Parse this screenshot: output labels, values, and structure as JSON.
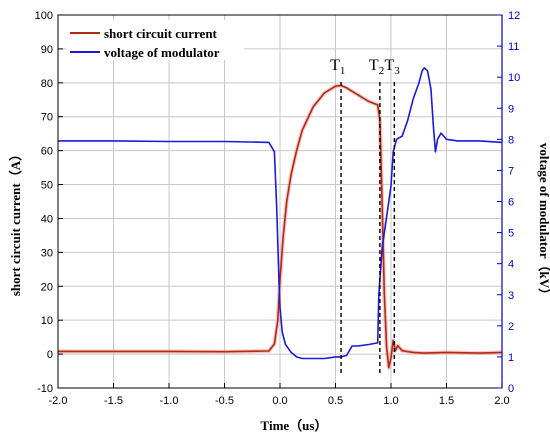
{
  "chart_data": {
    "type": "line",
    "xlabel": "Time（us）",
    "ylabel_left": "short circuit current（A）",
    "ylabel_right": "voltage of modulator（kV）",
    "xlim": [
      -2.0,
      2.0
    ],
    "ylim_left": [
      -10,
      100
    ],
    "ylim_right": [
      0,
      12
    ],
    "x_ticks": [
      "-2.0",
      "-1.5",
      "-1.0",
      "-0.5",
      "0.0",
      "0.5",
      "1.0",
      "1.5",
      "2.0"
    ],
    "y_left_ticks": [
      "-10",
      "0",
      "10",
      "20",
      "30",
      "40",
      "50",
      "60",
      "70",
      "80",
      "90",
      "100"
    ],
    "y_right_ticks": [
      "0",
      "1",
      "2",
      "3",
      "4",
      "5",
      "6",
      "7",
      "8",
      "9",
      "10",
      "11",
      "12"
    ],
    "grid": true,
    "legend_position": "top-left",
    "colors": {
      "current": "#b22a12",
      "voltage": "#1a1adb",
      "right_axis": "#0000cc"
    },
    "series": [
      {
        "name": "short circuit current",
        "axis": "left",
        "x": [
          -2.0,
          -1.5,
          -1.0,
          -0.5,
          -0.1,
          -0.05,
          -0.02,
          0.0,
          0.03,
          0.06,
          0.1,
          0.15,
          0.2,
          0.3,
          0.4,
          0.5,
          0.55,
          0.6,
          0.7,
          0.8,
          0.88,
          0.9,
          0.92,
          0.94,
          0.96,
          0.98,
          1.0,
          1.02,
          1.04,
          1.06,
          1.1,
          1.2,
          1.3,
          1.5,
          1.8,
          2.0
        ],
        "values": [
          0.8,
          0.8,
          0.8,
          0.7,
          0.9,
          3,
          10,
          22,
          35,
          45,
          53,
          60,
          66,
          73,
          77,
          79,
          79.2,
          78.5,
          76.5,
          74.5,
          73.5,
          69,
          45,
          18,
          2,
          -4,
          -1,
          4,
          1,
          2.5,
          1,
          0.5,
          0.3,
          0.5,
          0.3,
          0.5
        ]
      },
      {
        "name": "voltage of modulator",
        "axis": "right",
        "x": [
          -2.0,
          -1.5,
          -1.0,
          -0.5,
          -0.1,
          -0.05,
          -0.03,
          -0.01,
          0.0,
          0.02,
          0.05,
          0.1,
          0.15,
          0.2,
          0.3,
          0.4,
          0.5,
          0.55,
          0.6,
          0.65,
          0.7,
          0.8,
          0.88,
          0.89,
          0.92,
          0.96,
          1.0,
          1.02,
          1.05,
          1.1,
          1.15,
          1.2,
          1.25,
          1.28,
          1.3,
          1.33,
          1.36,
          1.38,
          1.4,
          1.42,
          1.45,
          1.5,
          1.6,
          1.8,
          2.0
        ],
        "values": [
          7.95,
          7.95,
          7.93,
          7.93,
          7.9,
          7.6,
          5.8,
          3.5,
          2.6,
          1.8,
          1.4,
          1.15,
          1.0,
          0.95,
          0.95,
          0.95,
          1.0,
          1.0,
          1.05,
          1.35,
          1.35,
          1.4,
          1.45,
          3.0,
          4.5,
          5.5,
          6.5,
          7.6,
          8.0,
          8.1,
          8.6,
          9.3,
          9.8,
          10.2,
          10.3,
          10.2,
          9.6,
          8.5,
          7.6,
          8.0,
          8.2,
          8.0,
          7.95,
          7.95,
          7.9
        ]
      }
    ],
    "annotations": [
      {
        "label": "T",
        "sub": "1",
        "x": 0.55
      },
      {
        "label": "T",
        "sub": "2",
        "x": 0.9
      },
      {
        "label": "T",
        "sub": "3",
        "x": 1.03
      }
    ]
  }
}
